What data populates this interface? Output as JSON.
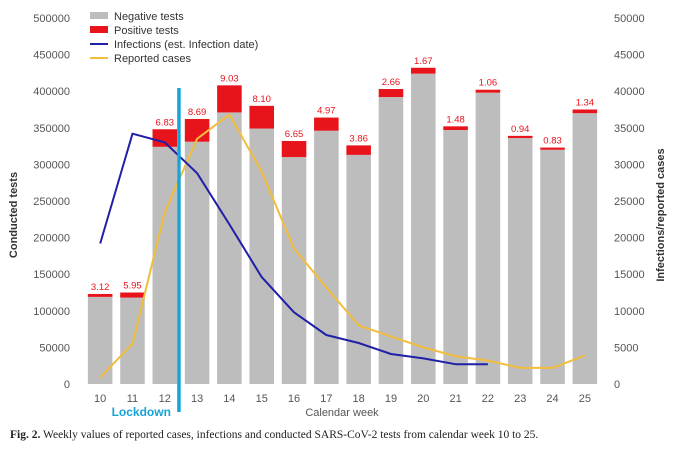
{
  "caption": {
    "label": "Fig. 2.",
    "text": "Weekly values of reported cases, infections and conducted SARS-CoV-2 tests from calendar week 10 to 25."
  },
  "colors": {
    "negative": "#bdbdbd",
    "positive": "#e8141b",
    "infections": "#1f1fa8",
    "reported": "#f2bd3a",
    "lockdown": "#16a3d6",
    "pct_label": "#e8141b",
    "axis_text": "#555555"
  },
  "chart_data": {
    "type": "bar",
    "xlabel": "Calendar week",
    "ylabel_left": "Conducted tests",
    "ylabel_right": "Infections/reported cases",
    "ylim_left": [
      0,
      500000
    ],
    "ylim_right": [
      0,
      50000
    ],
    "yticks_left": [
      "0",
      "50000",
      "100000",
      "150000",
      "200000",
      "250000",
      "300000",
      "350000",
      "400000",
      "450000",
      "500000"
    ],
    "yticks_right": [
      "0",
      "5000",
      "10000",
      "15000",
      "20000",
      "25000",
      "30000",
      "35000",
      "40000",
      "45000",
      "50000"
    ],
    "categories": [
      "10",
      "11",
      "12",
      "13",
      "14",
      "15",
      "16",
      "17",
      "18",
      "19",
      "20",
      "21",
      "22",
      "23",
      "24",
      "25"
    ],
    "legend": [
      {
        "label": "Negative tests",
        "kind": "box",
        "color": "#bdbdbd"
      },
      {
        "label": "Positive tests",
        "kind": "box",
        "color": "#e8141b"
      },
      {
        "label": "Infections (est. Infection date)",
        "kind": "line",
        "color": "#1f1fa8"
      },
      {
        "label": "Reported cases",
        "kind": "line",
        "color": "#f2bd3a"
      }
    ],
    "series": [
      {
        "name": "Negative tests",
        "axis": "left",
        "type": "bar",
        "values": [
          119000,
          118000,
          324000,
          331000,
          371000,
          349000,
          310000,
          346000,
          313000,
          392000,
          424000,
          347000,
          398000,
          336000,
          320000,
          370000
        ]
      },
      {
        "name": "Positive tests",
        "axis": "left",
        "type": "bar",
        "values": [
          4000,
          7000,
          24000,
          31000,
          37000,
          31000,
          22000,
          18000,
          13000,
          11000,
          8000,
          5000,
          4000,
          3000,
          3000,
          5000
        ]
      },
      {
        "name": "Infections (est. Infection date)",
        "axis": "right",
        "type": "line",
        "values": [
          19200,
          34200,
          33000,
          28800,
          21800,
          14600,
          9800,
          6700,
          5600,
          4100,
          3500,
          2700,
          2700,
          null,
          null,
          null
        ]
      },
      {
        "name": "Reported cases",
        "axis": "right",
        "type": "line",
        "values": [
          900,
          5500,
          23500,
          33500,
          36800,
          29000,
          18500,
          13200,
          8000,
          6500,
          5000,
          3800,
          3200,
          2200,
          2200,
          3900
        ]
      }
    ],
    "bar_labels": [
      "3.12",
      "5.95",
      "6.83",
      "8.69",
      "9.03",
      "8.10",
      "6.65",
      "4.97",
      "3.86",
      "2.66",
      "1.67",
      "1.48",
      "1.06",
      "0.94",
      "0.83",
      "1.34"
    ],
    "annotation": {
      "label": "Lockdown",
      "x_between": [
        "12",
        "13"
      ],
      "color": "#16a3d6"
    },
    "grid": false,
    "legend_position": "top-left"
  }
}
